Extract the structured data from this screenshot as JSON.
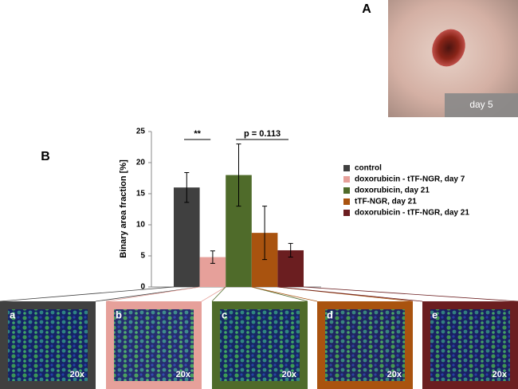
{
  "panel_labels": [
    "A",
    "B"
  ],
  "photo_caption": "day 5",
  "chart_data": {
    "type": "bar",
    "ylabel": "Binary area fraction [%]",
    "ylim": [
      0,
      25
    ],
    "yticks": [
      0,
      5,
      10,
      15,
      20,
      25
    ],
    "series": [
      {
        "name": "control",
        "color": "#404040",
        "values": [
          16
        ],
        "errors": [
          2.4
        ]
      },
      {
        "name": "doxorubicin - tTF-NGR, day 7",
        "color": "#e6a09a",
        "values": [
          4.8
        ],
        "errors": [
          1
        ]
      },
      {
        "name": "doxorubicin, day 21",
        "color": "#4f6b2a",
        "values": [
          18
        ],
        "errors": [
          5
        ]
      },
      {
        "name": "tTF-NGR, day 21",
        "color": "#a9530f",
        "values": [
          8.7
        ],
        "errors": [
          4.3
        ]
      },
      {
        "name": "doxorubicin - tTF-NGR, day 21",
        "color": "#6b1e20",
        "values": [
          5.9
        ],
        "errors": [
          1.1
        ]
      }
    ],
    "annotations": [
      {
        "text": "**",
        "from": 0,
        "to": 1
      },
      {
        "text": "p = 0.113",
        "from": 2,
        "to": 4
      }
    ]
  },
  "micrographs": [
    {
      "label": "a",
      "magnification": "20x"
    },
    {
      "label": "b",
      "magnification": "20x"
    },
    {
      "label": "c",
      "magnification": "20x"
    },
    {
      "label": "d",
      "magnification": "20x"
    },
    {
      "label": "e",
      "magnification": "20x"
    }
  ]
}
